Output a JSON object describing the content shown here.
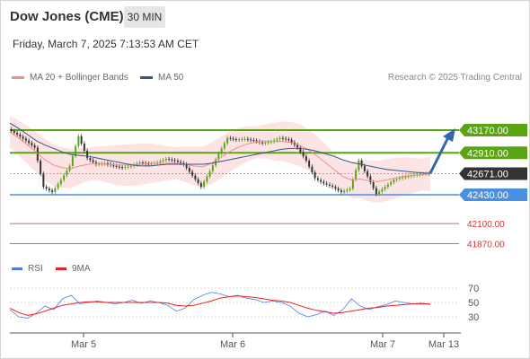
{
  "header": {
    "title": "Dow Jones (CME)",
    "timeframe": "30 MIN",
    "datetime": "Friday, March 7, 2025 7:13:53 AM CET"
  },
  "legend": {
    "ma20_label": "MA 20 + Bollinger Bands",
    "ma20_color": "#f28b8b",
    "ma50_label": "MA 50",
    "ma50_color": "#34568b",
    "research": "Research © 2025 Trading Central"
  },
  "rsi_legend": {
    "rsi_label": "RSI",
    "rsi_color": "#4a7fe0",
    "ma9_label": "9MA",
    "ma9_color": "#e82020"
  },
  "chart_data": {
    "type": "line",
    "price_axis": {
      "ylim": [
        41800,
        43400
      ]
    },
    "levels": [
      {
        "label": "43170.00",
        "value": 43170,
        "kind": "resistance",
        "color": "#5aa312"
      },
      {
        "label": "42910.00",
        "value": 42910,
        "kind": "resistance",
        "color": "#5aa312"
      },
      {
        "label": "42671.00",
        "value": 42671,
        "kind": "last",
        "color": "#333333"
      },
      {
        "label": "42430.00",
        "value": 42430,
        "kind": "support",
        "color": "#4a90e2"
      },
      {
        "label": "42100.00",
        "value": 42100,
        "kind": "support-thin",
        "color": "#e06060"
      },
      {
        "label": "41870.00",
        "value": 41870,
        "kind": "support-thin",
        "color": "#e06060"
      }
    ],
    "x_ticks": [
      "Mar 5",
      "Mar 6",
      "Mar 7",
      "Mar 13"
    ],
    "price_series": [
      43180,
      43120,
      43050,
      42970,
      42520,
      42460,
      42600,
      42760,
      43100,
      42850,
      42780,
      42790,
      42760,
      42740,
      42760,
      42800,
      42780,
      42800,
      42840,
      42820,
      42780,
      42650,
      42520,
      42700,
      42900,
      43080,
      43060,
      43070,
      43050,
      43020,
      43040,
      43080,
      43060,
      42970,
      42820,
      42620,
      42560,
      42520,
      42460,
      42500,
      42820,
      42640,
      42440,
      42520,
      42600,
      42630,
      42650,
      42670,
      42671
    ],
    "ma20_series": [
      43150,
      43080,
      43000,
      42920,
      42830,
      42770,
      42740,
      42730,
      42760,
      42780,
      42790,
      42780,
      42770,
      42770,
      42770,
      42780,
      42790,
      42790,
      42790,
      42790,
      42780,
      42760,
      42750,
      42790,
      42850,
      42920,
      42970,
      43010,
      43030,
      43040,
      43040,
      43040,
      43030,
      43000,
      42950,
      42880,
      42800,
      42720,
      42640,
      42600,
      42610,
      42590,
      42580,
      42600,
      42620,
      42640,
      42650,
      42660,
      42670
    ],
    "ma50_series": [
      43250,
      43190,
      43120,
      43050,
      43000,
      42960,
      42920,
      42890,
      42880,
      42870,
      42850,
      42830,
      42810,
      42790,
      42770,
      42760,
      42760,
      42770,
      42780,
      42780,
      42780,
      42780,
      42780,
      42790,
      42810,
      42830,
      42850,
      42870,
      42890,
      42910,
      42930,
      42950,
      42960,
      42960,
      42950,
      42930,
      42900,
      42870,
      42830,
      42800,
      42780,
      42760,
      42740,
      42720,
      42710,
      42700,
      42690,
      42680,
      42675
    ],
    "rsi_axis": {
      "ylim": [
        20,
        80
      ],
      "ticks": [
        "70",
        "50",
        "30"
      ]
    },
    "rsi_series": [
      40,
      30,
      28,
      35,
      45,
      40,
      55,
      60,
      48,
      50,
      52,
      50,
      48,
      50,
      53,
      49,
      52,
      50,
      46,
      38,
      42,
      54,
      60,
      64,
      62,
      58,
      60,
      56,
      54,
      50,
      52,
      50,
      45,
      35,
      30,
      33,
      38,
      32,
      40,
      55,
      45,
      40,
      44,
      47,
      52,
      50,
      48,
      49,
      47
    ],
    "rsi_ma9_series": [
      42,
      36,
      32,
      34,
      38,
      42,
      46,
      48,
      50,
      51,
      51,
      50,
      50,
      50,
      50,
      50,
      50,
      50,
      49,
      46,
      45,
      46,
      49,
      52,
      56,
      58,
      59,
      58,
      57,
      55,
      53,
      52,
      50,
      46,
      42,
      39,
      37,
      35,
      36,
      38,
      40,
      42,
      43,
      45,
      46,
      47,
      48,
      48,
      48
    ],
    "rsi_range": [
      20,
      80
    ]
  }
}
